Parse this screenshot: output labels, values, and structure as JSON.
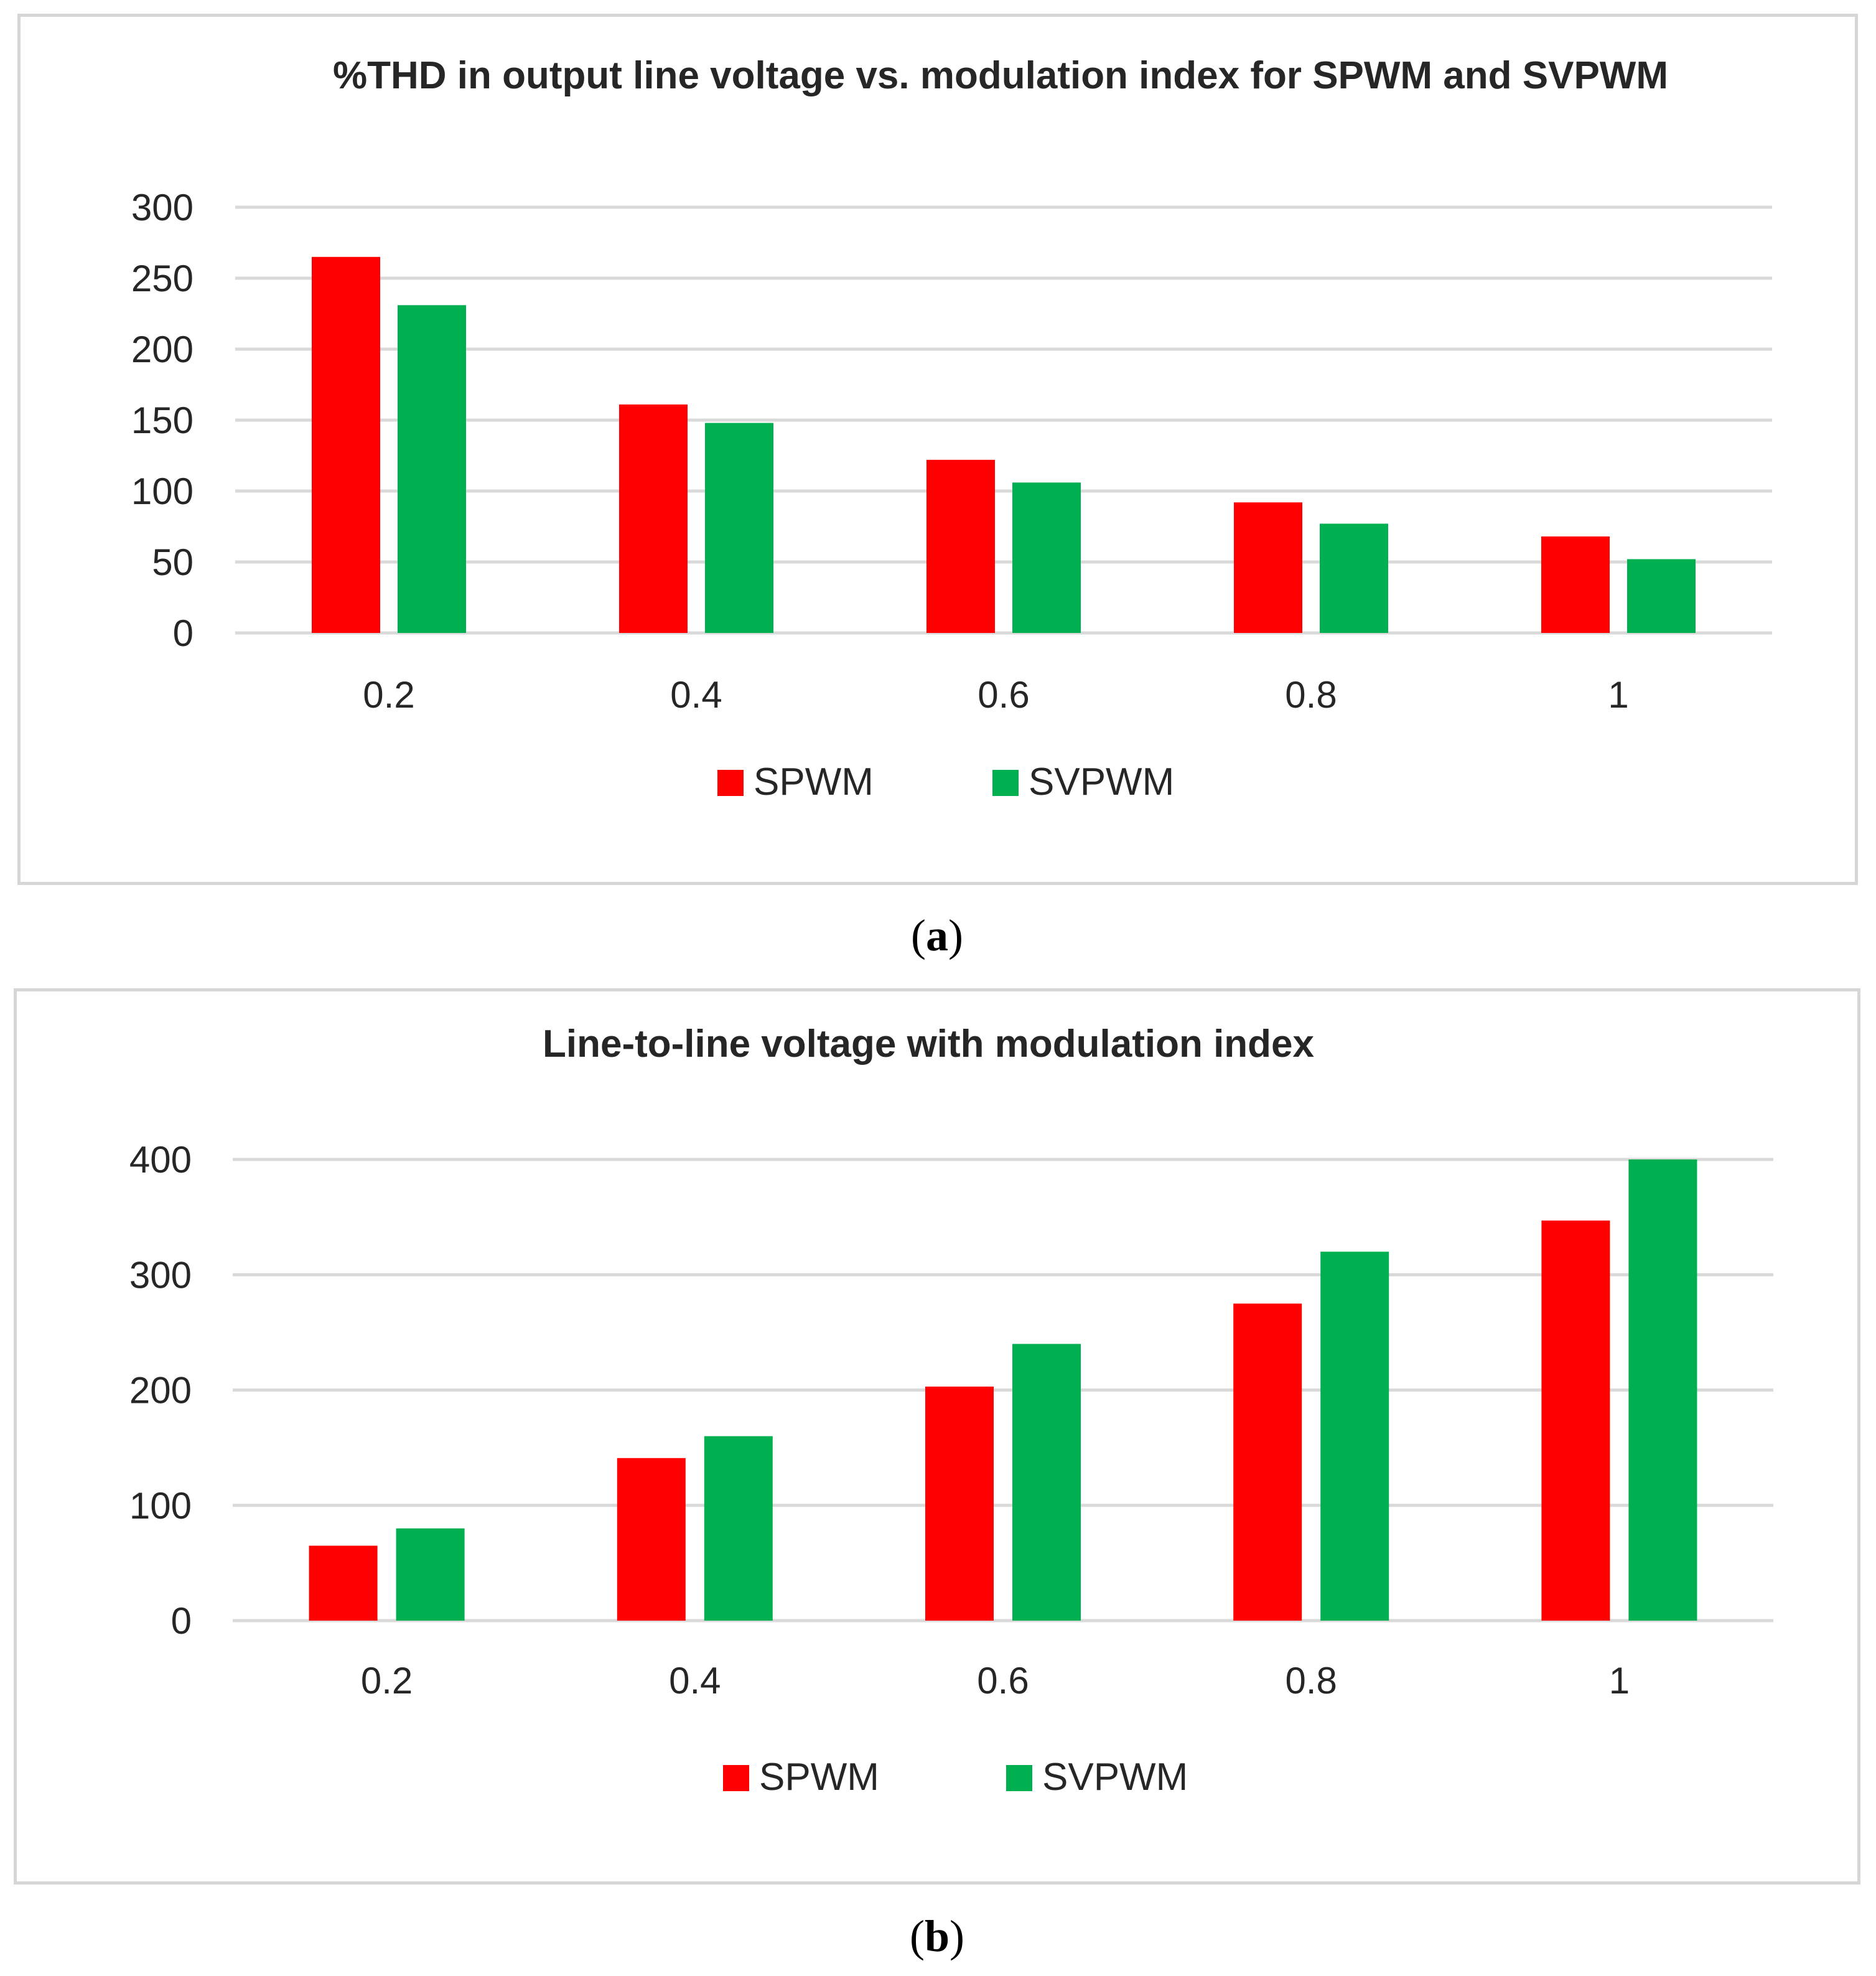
{
  "colors": {
    "spwm": "#ff0000",
    "svpwm": "#00b050",
    "grid": "#d9d9d9",
    "text": "#262626"
  },
  "chart_data": [
    {
      "type": "bar",
      "title": "%THD in output line voltage vs. modulation index for SPWM and SVPWM",
      "categories": [
        "0.2",
        "0.4",
        "0.6",
        "0.8",
        "1"
      ],
      "series": [
        {
          "name": "SPWM",
          "values": [
            265,
            161,
            122,
            92,
            68
          ]
        },
        {
          "name": "SVPWM",
          "values": [
            231,
            148,
            106,
            77,
            52
          ]
        }
      ],
      "ylim": [
        0,
        300
      ],
      "yticks": [
        "0",
        "50",
        "100",
        "150",
        "200",
        "250",
        "300"
      ],
      "xlabel": "",
      "ylabel": "",
      "grid": true,
      "legend": "bottom-center"
    },
    {
      "type": "bar",
      "title": "Line-to-line voltage with modulation index",
      "categories": [
        "0.2",
        "0.4",
        "0.6",
        "0.8",
        "1"
      ],
      "series": [
        {
          "name": "SPWM",
          "values": [
            65,
            141,
            203,
            275,
            347
          ]
        },
        {
          "name": "SVPWM",
          "values": [
            80,
            160,
            240,
            320,
            400
          ]
        }
      ],
      "ylim": [
        0,
        400
      ],
      "yticks": [
        "0",
        "100",
        "200",
        "300",
        "400"
      ],
      "xlabel": "",
      "ylabel": "",
      "grid": true,
      "legend": "bottom-center"
    }
  ],
  "captions": {
    "a_open": "(",
    "a_letter": "a",
    "a_close": ")",
    "b_open": "(",
    "b_letter": "b",
    "b_close": ")"
  }
}
